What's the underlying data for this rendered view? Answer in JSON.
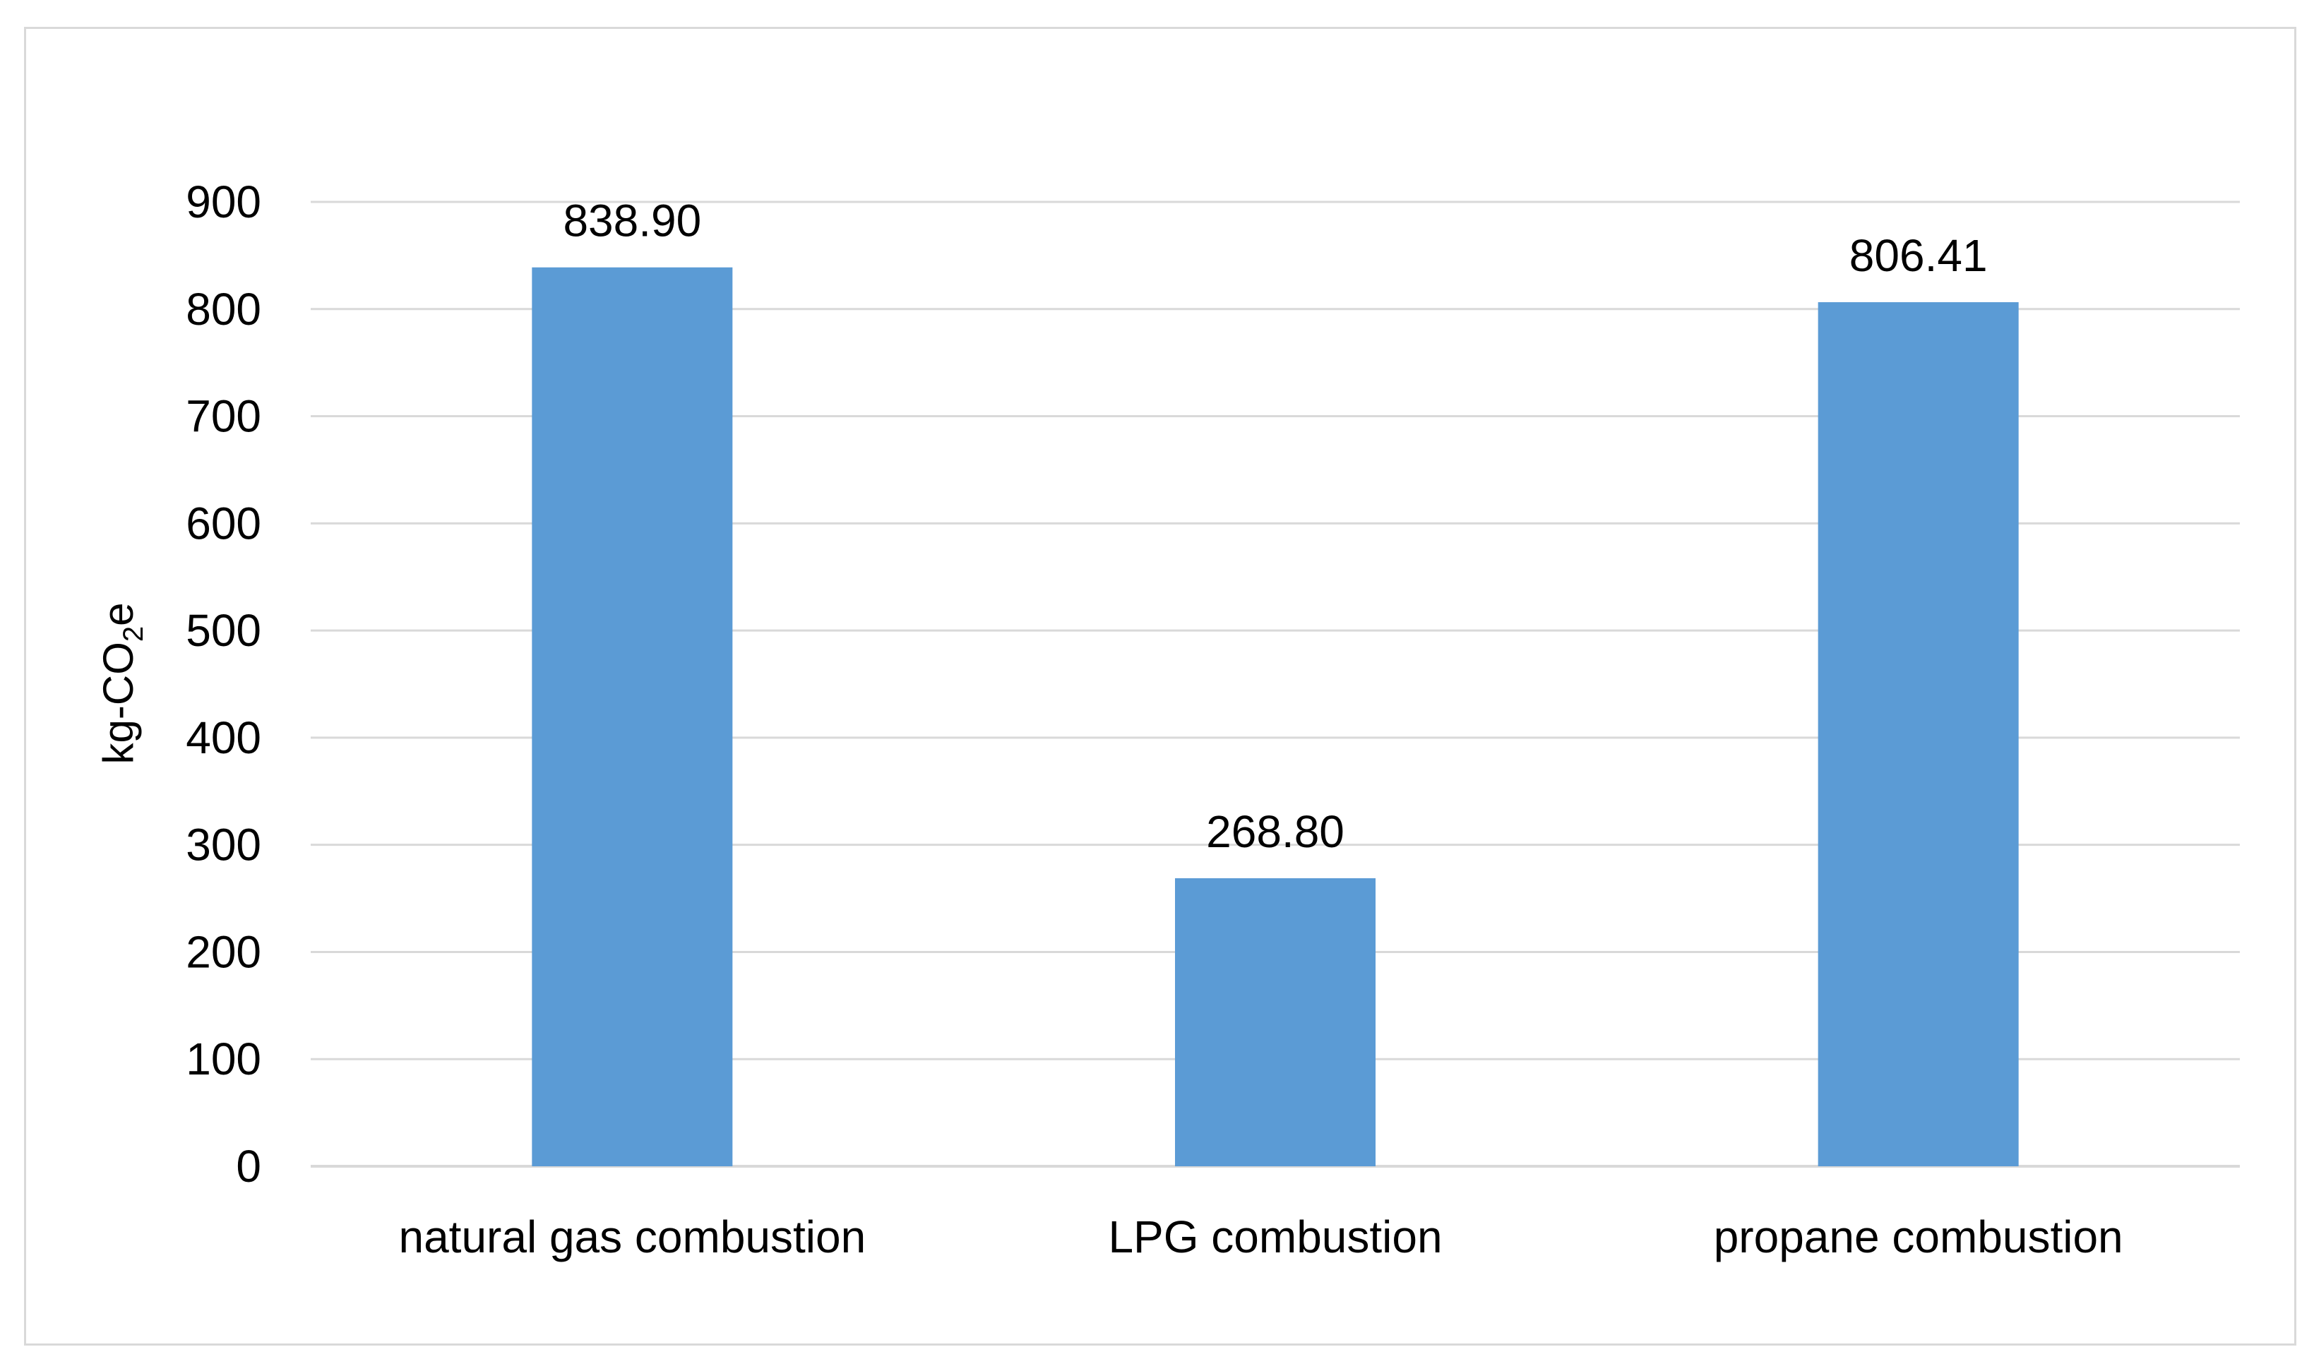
{
  "chart_data": {
    "type": "bar",
    "title": "",
    "xlabel": "",
    "ylabel": {
      "prefix": "kg-CO",
      "subscript": "2",
      "suffix": "e"
    },
    "categories": [
      "natural gas combustion",
      "LPG combustion",
      "propane combustion"
    ],
    "values": [
      838.9,
      268.8,
      806.41
    ],
    "value_labels": [
      "838.90",
      "268.80",
      "806.41"
    ],
    "ylim": [
      0,
      900
    ],
    "yticks": [
      0,
      100,
      200,
      300,
      400,
      500,
      600,
      700,
      800,
      900
    ],
    "grid": true,
    "legend": "none",
    "colors": {
      "bar": "#5b9bd5",
      "grid": "#d9d9d9",
      "axis": "#d9d9d9"
    }
  }
}
